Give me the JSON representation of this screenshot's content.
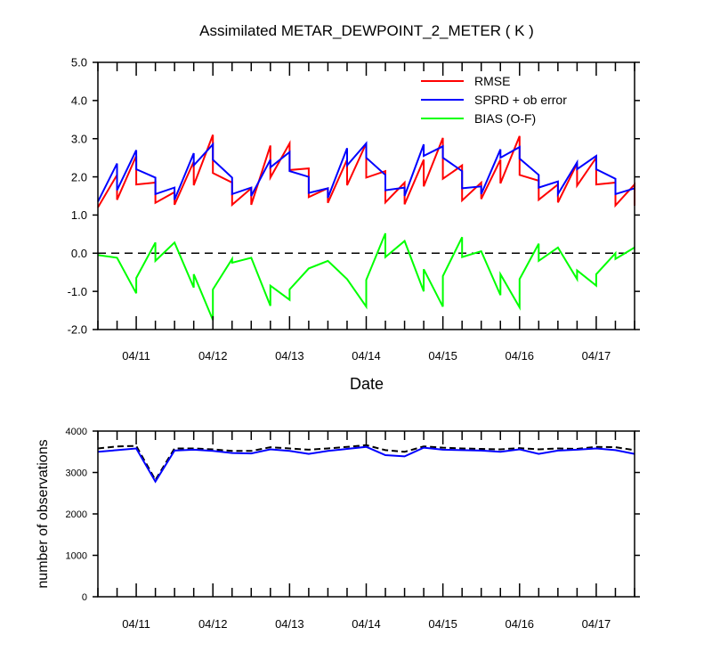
{
  "chart_data": [
    {
      "type": "line",
      "title": "Assimilated METAR_DEWPOINT_2_METER ( K )",
      "xlabel": "Date",
      "ylabel": "",
      "ylim": [
        -2.0,
        5.0
      ],
      "y_ticks": [
        "5.0",
        "4.0",
        "3.0",
        "2.0",
        "1.0",
        "0.0",
        "-1.0",
        "-2.0"
      ],
      "x_tick_labels": [
        "04/11",
        "04/12",
        "04/13",
        "04/14",
        "04/15",
        "04/16",
        "04/17"
      ],
      "x_range_days": [
        10.5,
        17.5
      ],
      "legend_position": "top-right",
      "grid": false,
      "zero_line": {
        "y": 0.0,
        "style": "dashed",
        "color": "#000000"
      },
      "series": [
        {
          "name": "RMSE",
          "color": "#ff0000",
          "points": [
            [
              10.5,
              1.2
            ],
            [
              10.75,
              2.05
            ],
            [
              10.75,
              1.4
            ],
            [
              11.0,
              2.55
            ],
            [
              11.0,
              1.8
            ],
            [
              11.25,
              1.85
            ],
            [
              11.25,
              1.9
            ],
            [
              11.25,
              1.32
            ],
            [
              11.5,
              1.6
            ],
            [
              11.5,
              1.27
            ],
            [
              11.75,
              2.4
            ],
            [
              11.75,
              1.78
            ],
            [
              12.0,
              3.1
            ],
            [
              12.0,
              2.1
            ],
            [
              12.25,
              1.85
            ],
            [
              12.25,
              1.27
            ],
            [
              12.5,
              1.7
            ],
            [
              12.5,
              1.27
            ],
            [
              12.75,
              2.82
            ],
            [
              12.75,
              1.98
            ],
            [
              13.0,
              2.88
            ],
            [
              13.0,
              2.18
            ],
            [
              13.25,
              2.22
            ],
            [
              13.25,
              1.47
            ],
            [
              13.5,
              1.7
            ],
            [
              13.5,
              1.32
            ],
            [
              13.75,
              2.45
            ],
            [
              13.75,
              1.78
            ],
            [
              14.0,
              2.88
            ],
            [
              14.0,
              1.98
            ],
            [
              14.25,
              2.15
            ],
            [
              14.25,
              1.33
            ],
            [
              14.5,
              1.85
            ],
            [
              14.5,
              1.28
            ],
            [
              14.75,
              2.45
            ],
            [
              14.75,
              1.75
            ],
            [
              15.0,
              3.02
            ],
            [
              15.0,
              1.95
            ],
            [
              15.25,
              2.3
            ],
            [
              15.25,
              1.38
            ],
            [
              15.5,
              1.85
            ],
            [
              15.5,
              1.42
            ],
            [
              15.75,
              2.45
            ],
            [
              15.75,
              1.83
            ],
            [
              16.0,
              3.07
            ],
            [
              16.0,
              2.05
            ],
            [
              16.25,
              1.9
            ],
            [
              16.25,
              1.4
            ],
            [
              16.5,
              1.8
            ],
            [
              16.5,
              1.33
            ],
            [
              16.75,
              2.35
            ],
            [
              16.75,
              1.77
            ],
            [
              17.0,
              2.5
            ],
            [
              17.0,
              1.8
            ],
            [
              17.25,
              1.85
            ],
            [
              17.25,
              1.25
            ],
            [
              17.5,
              1.8
            ],
            [
              17.5,
              1.25
            ]
          ]
        },
        {
          "name": "SPRD + ob error",
          "color": "#0000ff",
          "points": [
            [
              10.5,
              1.35
            ],
            [
              10.75,
              2.35
            ],
            [
              10.75,
              1.65
            ],
            [
              11.0,
              2.7
            ],
            [
              11.0,
              2.2
            ],
            [
              11.25,
              1.98
            ],
            [
              11.25,
              1.55
            ],
            [
              11.5,
              1.72
            ],
            [
              11.5,
              1.4
            ],
            [
              11.75,
              2.62
            ],
            [
              11.75,
              2.3
            ],
            [
              12.0,
              2.85
            ],
            [
              12.0,
              2.45
            ],
            [
              12.25,
              1.98
            ],
            [
              12.25,
              1.55
            ],
            [
              12.5,
              1.72
            ],
            [
              12.5,
              1.5
            ],
            [
              12.75,
              2.45
            ],
            [
              12.75,
              2.25
            ],
            [
              13.0,
              2.65
            ],
            [
              13.0,
              2.15
            ],
            [
              13.25,
              2.0
            ],
            [
              13.25,
              1.58
            ],
            [
              13.5,
              1.7
            ],
            [
              13.5,
              1.45
            ],
            [
              13.75,
              2.75
            ],
            [
              13.75,
              2.3
            ],
            [
              14.0,
              2.88
            ],
            [
              14.0,
              2.5
            ],
            [
              14.25,
              2.05
            ],
            [
              14.25,
              1.65
            ],
            [
              14.5,
              1.72
            ],
            [
              14.5,
              1.5
            ],
            [
              14.75,
              2.85
            ],
            [
              14.75,
              2.55
            ],
            [
              15.0,
              2.8
            ],
            [
              15.0,
              2.5
            ],
            [
              15.25,
              2.15
            ],
            [
              15.25,
              1.7
            ],
            [
              15.5,
              1.75
            ],
            [
              15.5,
              1.55
            ],
            [
              15.75,
              2.72
            ],
            [
              15.75,
              2.5
            ],
            [
              16.0,
              2.78
            ],
            [
              16.0,
              2.48
            ],
            [
              16.25,
              2.05
            ],
            [
              16.25,
              1.72
            ],
            [
              16.5,
              1.88
            ],
            [
              16.5,
              1.55
            ],
            [
              16.75,
              2.38
            ],
            [
              16.75,
              2.2
            ],
            [
              17.0,
              2.55
            ],
            [
              17.0,
              2.2
            ],
            [
              17.25,
              1.95
            ],
            [
              17.25,
              1.55
            ],
            [
              17.5,
              1.7
            ]
          ]
        },
        {
          "name": "BIAS (O-F)",
          "color": "#00ff00",
          "points": [
            [
              10.5,
              -0.05
            ],
            [
              10.75,
              -0.12
            ],
            [
              11.0,
              -1.05
            ],
            [
              11.0,
              -0.65
            ],
            [
              11.25,
              0.28
            ],
            [
              11.25,
              -0.2
            ],
            [
              11.5,
              0.28
            ],
            [
              11.75,
              -0.9
            ],
            [
              11.75,
              -0.55
            ],
            [
              12.0,
              -1.75
            ],
            [
              12.0,
              -0.95
            ],
            [
              12.25,
              -0.15
            ],
            [
              12.25,
              -0.25
            ],
            [
              12.5,
              -0.12
            ],
            [
              12.75,
              -1.38
            ],
            [
              12.75,
              -0.85
            ],
            [
              13.0,
              -1.22
            ],
            [
              13.0,
              -0.95
            ],
            [
              13.25,
              -0.4
            ],
            [
              13.5,
              -0.2
            ],
            [
              13.75,
              -0.68
            ],
            [
              14.0,
              -1.4
            ],
            [
              14.0,
              -0.7
            ],
            [
              14.25,
              0.52
            ],
            [
              14.25,
              -0.1
            ],
            [
              14.5,
              0.32
            ],
            [
              14.75,
              -1.0
            ],
            [
              14.75,
              -0.42
            ],
            [
              15.0,
              -1.4
            ],
            [
              15.0,
              -0.6
            ],
            [
              15.25,
              0.42
            ],
            [
              15.25,
              -0.1
            ],
            [
              15.5,
              0.05
            ],
            [
              15.75,
              -1.1
            ],
            [
              15.75,
              -0.55
            ],
            [
              16.0,
              -1.42
            ],
            [
              16.0,
              -0.68
            ],
            [
              16.25,
              0.25
            ],
            [
              16.25,
              -0.2
            ],
            [
              16.5,
              0.15
            ],
            [
              16.75,
              -0.68
            ],
            [
              16.75,
              -0.45
            ],
            [
              17.0,
              -0.85
            ],
            [
              17.0,
              -0.55
            ],
            [
              17.25,
              0.0
            ],
            [
              17.25,
              -0.15
            ],
            [
              17.5,
              0.15
            ]
          ]
        }
      ]
    },
    {
      "type": "line",
      "title": "",
      "xlabel": "",
      "ylabel": "number of observations",
      "ylim": [
        0,
        4000
      ],
      "y_ticks": [
        "4000",
        "3000",
        "2000",
        "1000",
        "0"
      ],
      "x_tick_labels": [
        "04/11",
        "04/12",
        "04/13",
        "04/14",
        "04/15",
        "04/16",
        "04/17"
      ],
      "x_range_days": [
        10.5,
        17.5
      ],
      "grid": false,
      "series": [
        {
          "name": "",
          "color": "#000000",
          "style": "dashed",
          "points": [
            [
              10.5,
              3580
            ],
            [
              10.75,
              3630
            ],
            [
              11.0,
              3640
            ],
            [
              11.25,
              2820
            ],
            [
              11.5,
              3580
            ],
            [
              11.75,
              3580
            ],
            [
              12.0,
              3560
            ],
            [
              12.25,
              3520
            ],
            [
              12.5,
              3520
            ],
            [
              12.75,
              3610
            ],
            [
              13.0,
              3580
            ],
            [
              13.25,
              3550
            ],
            [
              13.5,
              3580
            ],
            [
              13.75,
              3620
            ],
            [
              14.0,
              3660
            ],
            [
              14.25,
              3540
            ],
            [
              14.5,
              3500
            ],
            [
              14.75,
              3630
            ],
            [
              15.0,
              3600
            ],
            [
              15.25,
              3580
            ],
            [
              15.5,
              3570
            ],
            [
              15.75,
              3560
            ],
            [
              16.0,
              3590
            ],
            [
              16.25,
              3560
            ],
            [
              16.5,
              3580
            ],
            [
              16.75,
              3570
            ],
            [
              17.0,
              3620
            ],
            [
              17.25,
              3610
            ],
            [
              17.5,
              3540
            ]
          ]
        },
        {
          "name": "",
          "color": "#0000ff",
          "style": "solid",
          "points": [
            [
              10.5,
              3500
            ],
            [
              10.75,
              3540
            ],
            [
              11.0,
              3580
            ],
            [
              11.25,
              2780
            ],
            [
              11.5,
              3530
            ],
            [
              11.75,
              3550
            ],
            [
              12.0,
              3520
            ],
            [
              12.25,
              3470
            ],
            [
              12.5,
              3460
            ],
            [
              12.75,
              3560
            ],
            [
              13.0,
              3520
            ],
            [
              13.25,
              3450
            ],
            [
              13.5,
              3520
            ],
            [
              13.75,
              3570
            ],
            [
              14.0,
              3620
            ],
            [
              14.25,
              3420
            ],
            [
              14.5,
              3390
            ],
            [
              14.75,
              3600
            ],
            [
              15.0,
              3550
            ],
            [
              15.25,
              3540
            ],
            [
              15.5,
              3530
            ],
            [
              15.75,
              3500
            ],
            [
              16.0,
              3560
            ],
            [
              16.25,
              3450
            ],
            [
              16.5,
              3530
            ],
            [
              16.75,
              3550
            ],
            [
              17.0,
              3580
            ],
            [
              17.25,
              3540
            ],
            [
              17.5,
              3450
            ]
          ]
        }
      ]
    }
  ]
}
